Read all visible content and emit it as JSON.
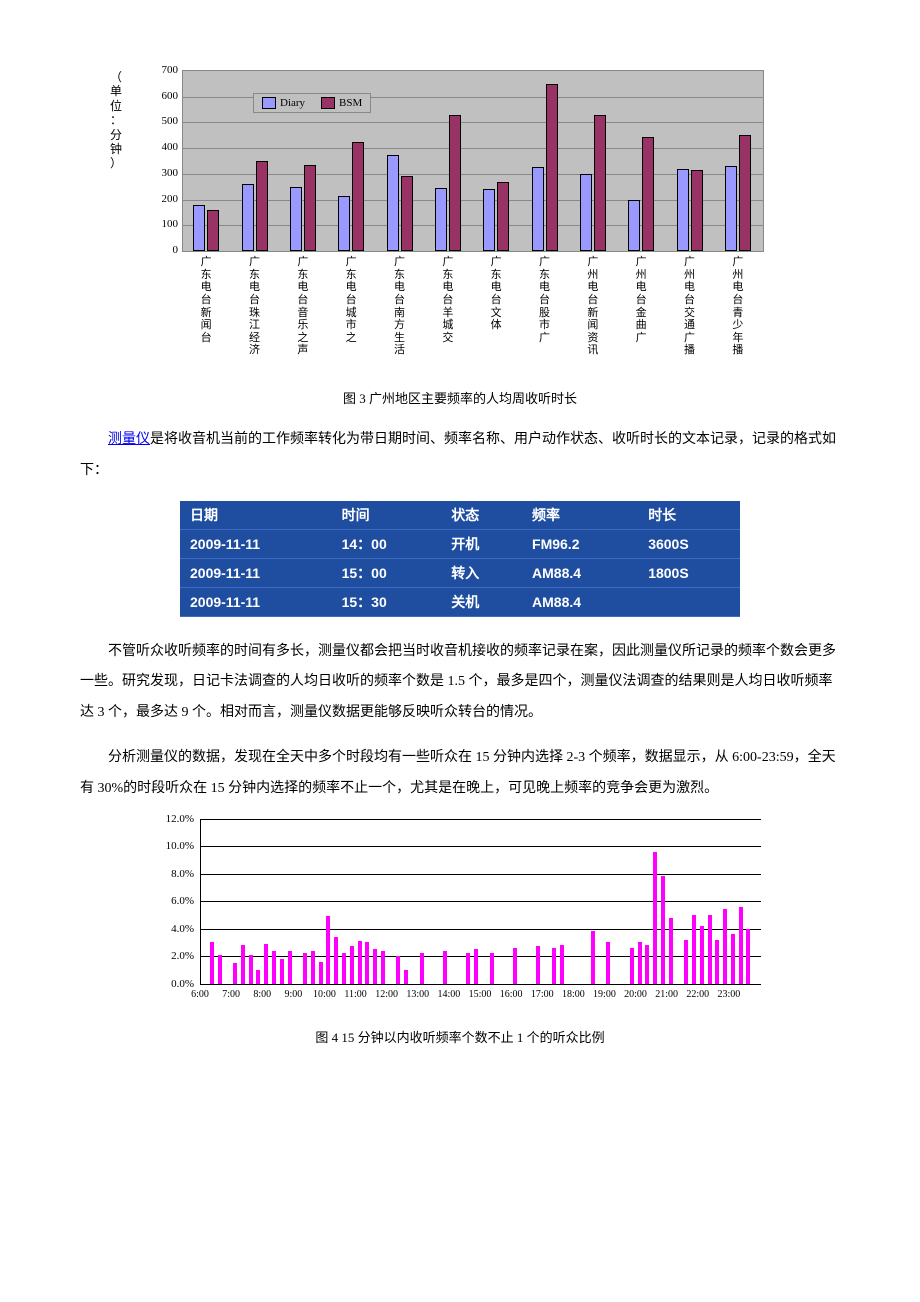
{
  "chart1": {
    "type": "bar",
    "ylabel_chars": [
      "（",
      "单",
      "位",
      "：",
      "分",
      "钟",
      "）"
    ],
    "ylim": [
      0,
      700
    ],
    "ytick_step": 100,
    "legend": [
      {
        "label": "Diary",
        "color": "#9999ff"
      },
      {
        "label": "BSM",
        "color": "#993366"
      }
    ],
    "background_color": "#c0c0c0",
    "grid_color": "#888888",
    "categories": [
      "广东电台新闻台",
      "广东电台珠江经济",
      "广东电台音乐之声",
      "广东电台城市之",
      "广东电台南方生活",
      "广东电台羊城交",
      "广东电台文体",
      "广东电台股市广",
      "广州电台新闻资讯",
      "广州电台金曲广",
      "广州电台交通广播",
      "广州电台青少年播"
    ],
    "series": {
      "Diary": [
        180,
        260,
        250,
        215,
        375,
        245,
        240,
        325,
        300,
        200,
        320,
        330
      ],
      "BSM": [
        160,
        350,
        335,
        425,
        290,
        530,
        270,
        650,
        530,
        445,
        315,
        450
      ]
    },
    "caption": "图 3 广州地区主要频率的人均周收听时长"
  },
  "intro_link": "测量仪",
  "intro_rest": "是将收音机当前的工作频率转化为带日期时间、频率名称、用户动作状态、收听时长的文本记录，记录的格式如下：",
  "table": {
    "bg": "#1f4ea1",
    "fg": "#ffffff",
    "columns": [
      "日期",
      "时间",
      "状态",
      "频率",
      "时长"
    ],
    "rows": [
      [
        "2009-11-11",
        "14：00",
        "开机",
        "FM96.2",
        "3600S"
      ],
      [
        "2009-11-11",
        "15：00",
        "转入",
        "AM88.4",
        "1800S"
      ],
      [
        "2009-11-11",
        "15：30",
        "关机",
        "AM88.4",
        ""
      ]
    ]
  },
  "para2": "不管听众收听频率的时间有多长，测量仪都会把当时收音机接收的频率记录在案，因此测量仪所记录的频率个数会更多一些。研究发现，日记卡法调查的人均日收听的频率个数是 1.5 个，最多是四个，测量仪法调查的结果则是人均日收听频率达 3 个，最多达 9 个。相对而言，测量仪数据更能够反映听众转台的情况。",
  "para3": "分析测量仪的数据，发现在全天中多个时段均有一些听众在 15 分钟内选择 2-3 个频率，数据显示，从 6:00-23:59，全天有 30%的时段听众在 15 分钟内选择的频率不止一个，尤其是在晚上，可见晚上频率的竞争会更为激烈。",
  "chart2": {
    "type": "bar",
    "bar_color": "#ff00ff",
    "ylim": [
      0,
      12
    ],
    "ytick_step": 2,
    "ylabel_suffix": ".0%",
    "x_hours": [
      "6:00",
      "7:00",
      "8:00",
      "9:00",
      "10:00",
      "11:00",
      "12:00",
      "13:00",
      "14:00",
      "15:00",
      "16:00",
      "17:00",
      "18:00",
      "19:00",
      "20:00",
      "21:00",
      "22:00",
      "23:00"
    ],
    "values": [
      0,
      3.0,
      2.1,
      0,
      1.5,
      2.8,
      2.1,
      1.0,
      2.9,
      2.4,
      1.8,
      2.4,
      0,
      2.2,
      2.4,
      1.6,
      4.9,
      3.4,
      2.2,
      2.7,
      3.1,
      3.0,
      2.5,
      2.4,
      0,
      2.0,
      1.0,
      0,
      2.2,
      0,
      0,
      2.4,
      0,
      0,
      2.2,
      2.5,
      0,
      2.2,
      0,
      0,
      2.6,
      0,
      0,
      2.7,
      0,
      2.6,
      2.8,
      0,
      0,
      0,
      3.8,
      0,
      3.0,
      0,
      0,
      2.6,
      3.0,
      2.8,
      9.6,
      7.8,
      4.8,
      0,
      3.2,
      5.0,
      4.2,
      5.0,
      3.2,
      5.4,
      3.6,
      5.6,
      4.0,
      0
    ],
    "caption": "图 4 15 分钟以内收听频率个数不止 1 个的听众比例"
  }
}
